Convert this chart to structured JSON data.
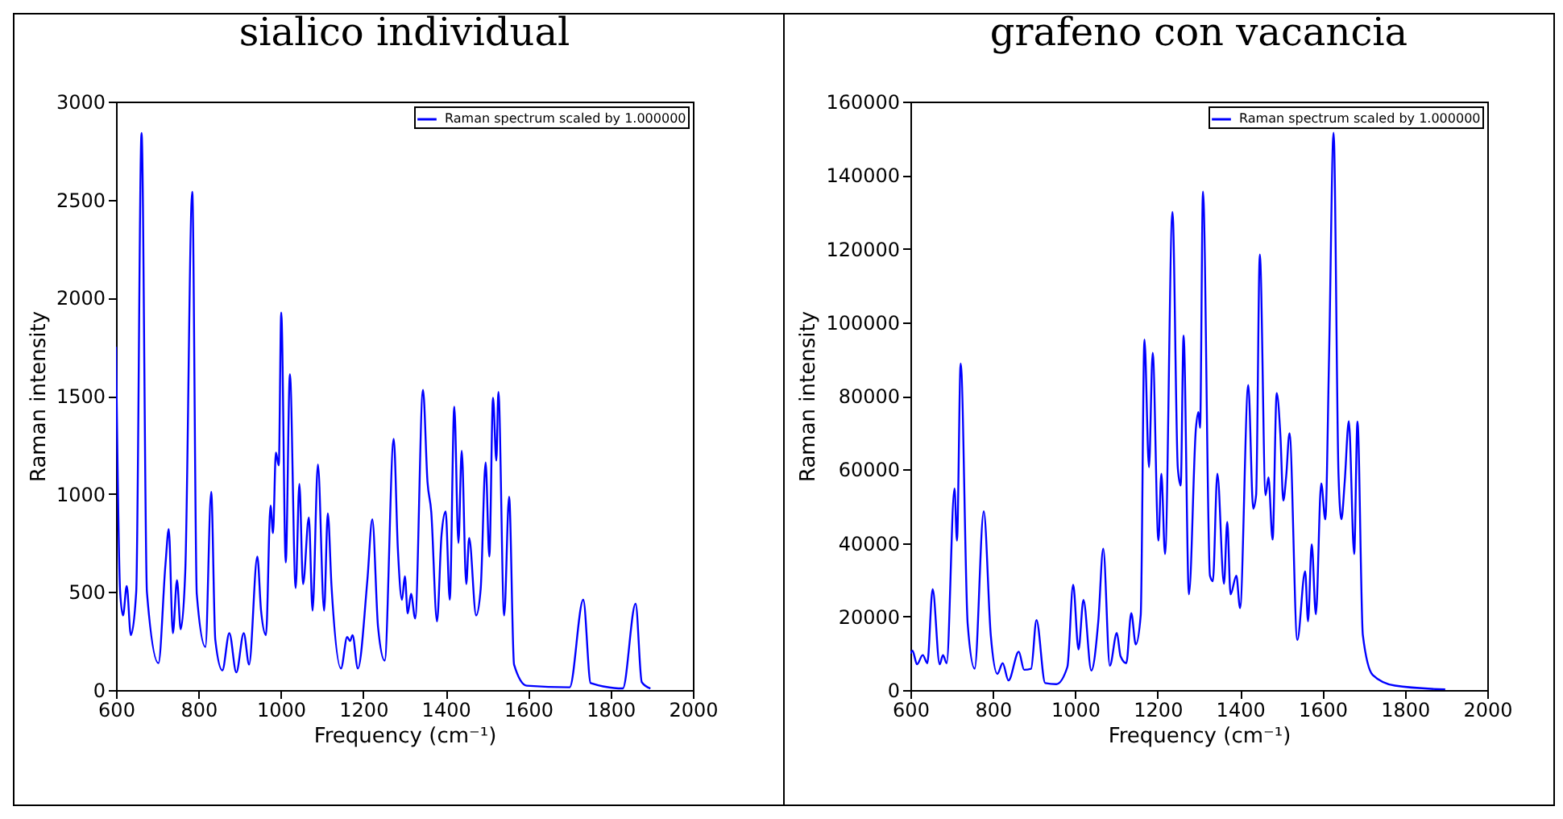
{
  "chart_data": [
    {
      "type": "line",
      "title": "sialico individual",
      "xlabel": "Frequency (cm⁻¹)",
      "ylabel": "Raman intensity",
      "xlim": [
        600,
        2000
      ],
      "xticks": [
        600,
        800,
        1000,
        1200,
        1400,
        1600,
        1800,
        2000
      ],
      "ylim": [
        0,
        3000
      ],
      "yticks": [
        0,
        500,
        1000,
        1500,
        2000,
        2500,
        3000
      ],
      "grid": false,
      "legend": "top right",
      "marker": "none",
      "line_style": "solid",
      "series": [
        {
          "name": "Raman spectrum scaled by 1.000000",
          "color": "#0000ff",
          "x": [
            600,
            610,
            617,
            626,
            636,
            649,
            662,
            675,
            703,
            720,
            728,
            738,
            748,
            757,
            768,
            785,
            796,
            817,
            831,
            841,
            858,
            875,
            892,
            910,
            923,
            943,
            952,
            964,
            975,
            981,
            988,
            995,
            1001,
            1012,
            1022,
            1036,
            1045,
            1054,
            1068,
            1077,
            1090,
            1105,
            1114,
            1123,
            1146,
            1161,
            1168,
            1174,
            1187,
            1210,
            1222,
            1236,
            1252,
            1274,
            1284,
            1294,
            1301,
            1308,
            1316,
            1326,
            1345,
            1356,
            1365,
            1379,
            1390,
            1400,
            1410,
            1421,
            1431,
            1439,
            1450,
            1457,
            1474,
            1485,
            1497,
            1506,
            1515,
            1523,
            1528,
            1542,
            1554,
            1566,
            1597,
            1701,
            1734,
            1752,
            1830,
            1861,
            1876,
            1897
          ],
          "values": [
            1750,
            500,
            380,
            530,
            280,
            500,
            2840,
            500,
            137,
            640,
            820,
            290,
            560,
            310,
            600,
            2540,
            490,
            220,
            1010,
            255,
            100,
            290,
            90,
            290,
            130,
            680,
            405,
            280,
            940,
            800,
            1210,
            1145,
            1925,
            650,
            1610,
            520,
            1050,
            540,
            880,
            405,
            1150,
            405,
            900,
            530,
            110,
            270,
            250,
            280,
            110,
            560,
            870,
            320,
            150,
            1280,
            720,
            460,
            580,
            390,
            490,
            365,
            1530,
            1060,
            910,
            350,
            790,
            910,
            460,
            1445,
            750,
            1220,
            540,
            775,
            380,
            515,
            1160,
            680,
            1490,
            1170,
            1520,
            380,
            985,
            130,
            22,
            14,
            460,
            35,
            8,
            440,
            40,
            8
          ]
        }
      ]
    },
    {
      "type": "line",
      "title": "grafeno con vacancia",
      "xlabel": "Frequency (cm⁻¹)",
      "ylabel": "Raman intensity",
      "xlim": [
        600,
        2000
      ],
      "xticks": [
        600,
        800,
        1000,
        1200,
        1400,
        1600,
        1800,
        2000
      ],
      "ylim": [
        0,
        160000
      ],
      "yticks": [
        0,
        20000,
        40000,
        60000,
        80000,
        100000,
        120000,
        140000,
        160000
      ],
      "grid": false,
      "legend": "top right",
      "marker": "none",
      "line_style": "solid",
      "series": [
        {
          "name": "Raman spectrum scaled by 1.000000",
          "color": "#0000ff",
          "x": [
            600,
            605,
            616,
            630,
            641,
            654,
            671,
            679,
            688,
            707,
            713,
            722,
            739,
            756,
            778,
            795,
            811,
            824,
            838,
            863,
            876,
            893,
            906,
            927,
            954,
            981,
            995,
            1008,
            1020,
            1039,
            1056,
            1068,
            1084,
            1101,
            1110,
            1124,
            1136,
            1147,
            1159,
            1168,
            1179,
            1188,
            1202,
            1209,
            1218,
            1236,
            1249,
            1256,
            1263,
            1276,
            1293,
            1299,
            1303,
            1310,
            1327,
            1334,
            1345,
            1361,
            1369,
            1377,
            1391,
            1400,
            1420,
            1432,
            1439,
            1448,
            1462,
            1469,
            1479,
            1489,
            1498,
            1505,
            1512,
            1520,
            1539,
            1558,
            1565,
            1574,
            1584,
            1597,
            1607,
            1616,
            1627,
            1639,
            1646,
            1654,
            1664,
            1677,
            1685,
            1698,
            1722,
            1776,
            1898
          ],
          "values": [
            9900,
            10700,
            7000,
            9500,
            7300,
            27400,
            7000,
            9500,
            7300,
            54800,
            40600,
            88800,
            18000,
            5800,
            48600,
            15000,
            4400,
            7300,
            2600,
            10400,
            5500,
            5800,
            19000,
            1900,
            1600,
            6300,
            28600,
            11000,
            24500,
            5300,
            18700,
            38400,
            6600,
            15500,
            9200,
            7300,
            20900,
            12400,
            20400,
            95300,
            60600,
            91700,
            40600,
            58800,
            37000,
            130000,
            60300,
            55600,
            96400,
            26000,
            71300,
            75600,
            71300,
            135500,
            31100,
            29600,
            58800,
            28900,
            45700,
            26000,
            31100,
            22300,
            82900,
            49300,
            53000,
            118400,
            53000,
            57800,
            40900,
            80700,
            69100,
            51500,
            58100,
            69800,
            13600,
            32300,
            18700,
            39600,
            20600,
            56200,
            46400,
            90200,
            151500,
            58500,
            46400,
            56600,
            73100,
            37000,
            73000,
            15000,
            4100,
            1200,
            150
          ]
        }
      ]
    }
  ]
}
